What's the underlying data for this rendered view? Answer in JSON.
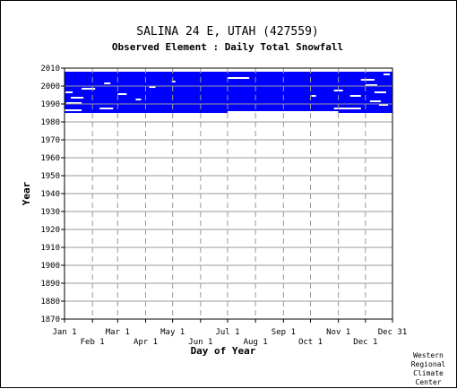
{
  "chart_data": {
    "type": "heatmap",
    "title": "SALINA 24 E, UTAH   (427559)",
    "subtitle": "Observed Element : Daily Total Snowfall",
    "xlabel": "Day of Year",
    "ylabel": "Year",
    "x_range_day": [
      1,
      365
    ],
    "ylim": [
      1870,
      2010
    ],
    "year_ticks": [
      2010,
      2000,
      1990,
      1980,
      1970,
      1960,
      1950,
      1940,
      1930,
      1920,
      1910,
      1900,
      1890,
      1880,
      1870
    ],
    "month_ticks_top": [
      {
        "label": "Jan 1",
        "day": 1
      },
      {
        "label": "Mar 1",
        "day": 60
      },
      {
        "label": "May 1",
        "day": 121
      },
      {
        "label": "Jul 1",
        "day": 182
      },
      {
        "label": "Sep 1",
        "day": 244
      },
      {
        "label": "Nov 1",
        "day": 305
      },
      {
        "label": "Dec 31",
        "day": 365
      }
    ],
    "month_ticks_bottom": [
      {
        "label": "Feb 1",
        "day": 32
      },
      {
        "label": "Apr 1",
        "day": 91
      },
      {
        "label": "Jun 1",
        "day": 152
      },
      {
        "label": "Aug 1",
        "day": 213
      },
      {
        "label": "Oct 1",
        "day": 274
      },
      {
        "label": "Dec 1",
        "day": 335
      }
    ],
    "grid": true,
    "colors": {
      "observed": "#0000ff",
      "missing": "#ffffff",
      "grid": "#999999"
    },
    "observed_blocks": [
      {
        "start_year": 1985,
        "end_year": 2005,
        "start_day": 1,
        "end_day": 365
      },
      {
        "start_year": 2005,
        "end_year": 2008,
        "start_day": 1,
        "end_day": 365
      }
    ],
    "missing_gaps": [
      {
        "start_year": 1985,
        "end_year": 1986,
        "start_day": 182,
        "end_day": 305
      },
      {
        "start_year": 1986,
        "end_year": 1987,
        "start_day": 1,
        "end_day": 20
      },
      {
        "start_year": 1987,
        "end_year": 1988,
        "start_day": 40,
        "end_day": 55
      },
      {
        "start_year": 1987,
        "end_year": 1988,
        "start_day": 300,
        "end_day": 330
      },
      {
        "start_year": 2004,
        "end_year": 2005,
        "start_day": 182,
        "end_day": 206
      },
      {
        "start_year": 1990,
        "end_year": 1991,
        "start_day": 3,
        "end_day": 20
      },
      {
        "start_year": 1993,
        "end_year": 1994,
        "start_day": 8,
        "end_day": 22
      },
      {
        "start_year": 1996,
        "end_year": 1997,
        "start_day": 2,
        "end_day": 10
      },
      {
        "start_year": 1998,
        "end_year": 1999,
        "start_day": 20,
        "end_day": 35
      },
      {
        "start_year": 2001,
        "end_year": 2002,
        "start_day": 45,
        "end_day": 52
      },
      {
        "start_year": 1995,
        "end_year": 1996,
        "start_day": 60,
        "end_day": 70
      },
      {
        "start_year": 1992,
        "end_year": 1993,
        "start_day": 80,
        "end_day": 86
      },
      {
        "start_year": 1999,
        "end_year": 2000,
        "start_day": 95,
        "end_day": 102
      },
      {
        "start_year": 2002,
        "end_year": 2003,
        "start_day": 120,
        "end_day": 124
      },
      {
        "start_year": 1997,
        "end_year": 1998,
        "start_day": 300,
        "end_day": 310
      },
      {
        "start_year": 1994,
        "end_year": 1995,
        "start_day": 318,
        "end_day": 330
      },
      {
        "start_year": 2000,
        "end_year": 2001,
        "start_day": 335,
        "end_day": 348
      },
      {
        "start_year": 1991,
        "end_year": 1992,
        "start_day": 340,
        "end_day": 352
      },
      {
        "start_year": 2003,
        "end_year": 2004,
        "start_day": 330,
        "end_day": 345
      },
      {
        "start_year": 1989,
        "end_year": 1990,
        "start_day": 350,
        "end_day": 360
      },
      {
        "start_year": 1996,
        "end_year": 1997,
        "start_day": 345,
        "end_day": 358
      },
      {
        "start_year": 2006,
        "end_year": 2007,
        "start_day": 355,
        "end_day": 362
      },
      {
        "start_year": 1994,
        "end_year": 1995,
        "start_day": 275,
        "end_day": 280
      }
    ],
    "credit": [
      "Western",
      "Regional",
      "Climate",
      "Center"
    ]
  }
}
